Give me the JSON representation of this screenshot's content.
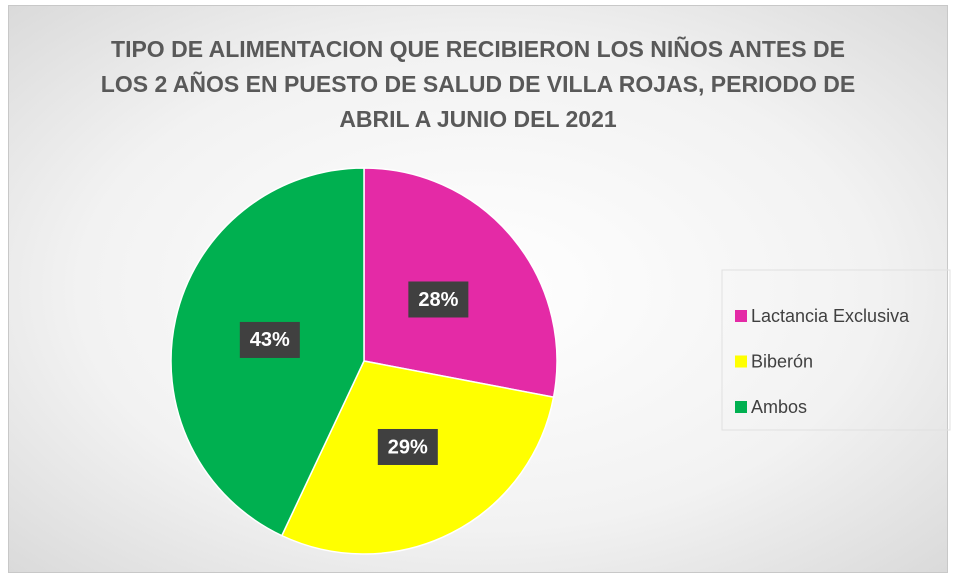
{
  "chart_data": {
    "type": "pie",
    "title": "TIPO DE ALIMENTACION QUE RECIBIERON LOS NIÑOS ANTES DE LOS 2 AÑOS EN PUESTO DE SALUD DE VILLA ROJAS, PERIODO DE ABRIL A JUNIO DEL 2021",
    "categories": [
      "Lactancia Exclusiva",
      "Biberón",
      "Ambos"
    ],
    "values": [
      28,
      29,
      43
    ],
    "value_labels": [
      "28%",
      "29%",
      "43%"
    ],
    "colors": [
      "#e42aa6",
      "#ffff00",
      "#00b050"
    ],
    "legend": "right"
  }
}
